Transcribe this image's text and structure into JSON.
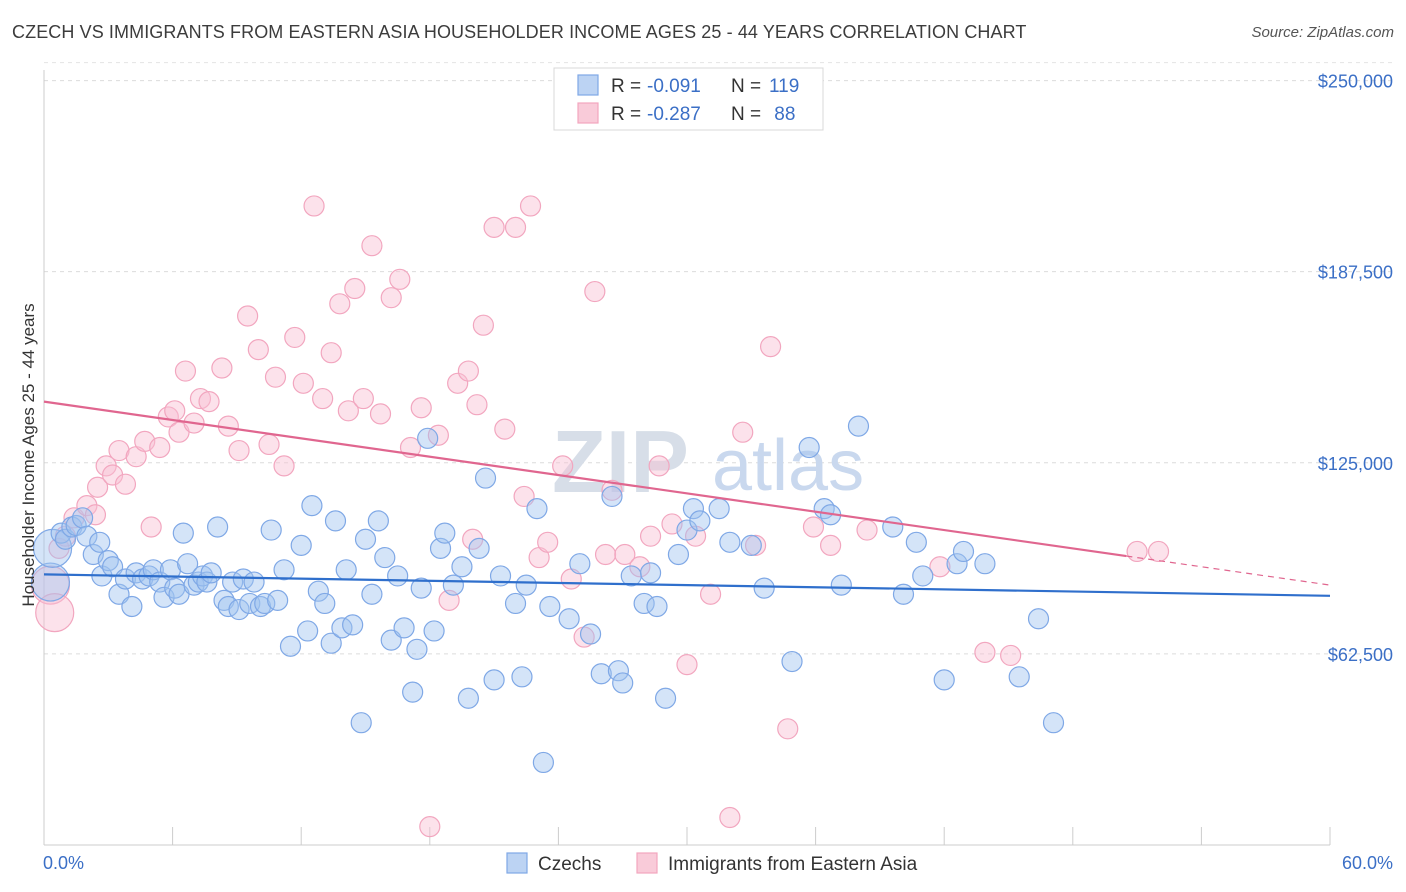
{
  "title": "CZECH VS IMMIGRANTS FROM EASTERN ASIA HOUSEHOLDER INCOME AGES 25 - 44 YEARS CORRELATION CHART",
  "source": "Source: ZipAtlas.com",
  "watermark": {
    "zip": "ZIP",
    "atlas": "atlas"
  },
  "legend_box": {
    "rows": [
      {
        "r_label": "R = ",
        "r_value": "-0.091",
        "n_label": "N = ",
        "n_value": "119"
      },
      {
        "r_label": "R = ",
        "r_value": "-0.287",
        "n_label": "N = ",
        "n_value": " 88"
      }
    ]
  },
  "bottom_legend": [
    "Czechs",
    "Immigrants from Eastern Asia"
  ],
  "chart_data": {
    "type": "scatter",
    "title": "CZECH VS IMMIGRANTS FROM EASTERN ASIA HOUSEHOLDER INCOME AGES 25 - 44 YEARS CORRELATION CHART",
    "xlabel": "",
    "ylabel": "Householder Income Ages 25 - 44 years",
    "xlim": [
      0,
      60
    ],
    "ylim": [
      0,
      260000
    ],
    "x_tick_labels": [
      "0.0%",
      "60.0%"
    ],
    "y_ticks": [
      62500,
      125000,
      187500,
      250000
    ],
    "y_tick_labels": [
      "$62,500",
      "$125,000",
      "$187,500",
      "$250,000"
    ],
    "grid": true,
    "legend_placement": "top-center",
    "colors": {
      "czechs": "#7fa8e6",
      "czechs_line": "#2f6fcc",
      "asia": "#f2a6bf",
      "asia_line": "#e0668f",
      "tick": "#3b6fc6"
    },
    "series": [
      {
        "name": "Czechs",
        "R": -0.091,
        "N": 119,
        "trend": {
          "x": [
            0,
            60
          ],
          "y": [
            88500,
            81500
          ]
        },
        "points": [
          [
            0.3,
            86000,
            1
          ],
          [
            0.4,
            97000,
            1
          ],
          [
            0.8,
            102000,
            0
          ],
          [
            1.0,
            100000,
            0
          ],
          [
            1.3,
            104000,
            0
          ],
          [
            1.5,
            104500,
            0
          ],
          [
            1.8,
            107000,
            0
          ],
          [
            2.0,
            101000,
            0
          ],
          [
            2.3,
            95000,
            0
          ],
          [
            2.6,
            99000,
            0
          ],
          [
            2.7,
            88000,
            0
          ],
          [
            3.0,
            93000,
            0
          ],
          [
            3.2,
            91000,
            0
          ],
          [
            3.5,
            82000,
            0
          ],
          [
            3.8,
            87000,
            0
          ],
          [
            4.1,
            78000,
            0
          ],
          [
            4.3,
            89000,
            0
          ],
          [
            4.6,
            87000,
            0
          ],
          [
            4.9,
            88000,
            0
          ],
          [
            5.1,
            90000,
            0
          ],
          [
            5.4,
            86000,
            0
          ],
          [
            5.6,
            81000,
            0
          ],
          [
            5.9,
            90000,
            0
          ],
          [
            6.1,
            84000,
            0
          ],
          [
            6.3,
            82000,
            0
          ],
          [
            6.5,
            102000,
            0
          ],
          [
            6.7,
            92000,
            0
          ],
          [
            7.0,
            85000,
            0
          ],
          [
            7.2,
            86000,
            0
          ],
          [
            7.4,
            88000,
            0
          ],
          [
            7.6,
            86000,
            0
          ],
          [
            7.8,
            89000,
            0
          ],
          [
            8.1,
            104000,
            0
          ],
          [
            8.4,
            80000,
            0
          ],
          [
            8.6,
            78000,
            0
          ],
          [
            8.8,
            86000,
            0
          ],
          [
            9.1,
            77000,
            0
          ],
          [
            9.3,
            87000,
            0
          ],
          [
            9.6,
            79000,
            0
          ],
          [
            9.8,
            86000,
            0
          ],
          [
            10.1,
            78000,
            0
          ],
          [
            10.3,
            79000,
            0
          ],
          [
            10.6,
            103000,
            0
          ],
          [
            10.9,
            80000,
            0
          ],
          [
            11.2,
            90000,
            0
          ],
          [
            11.5,
            65000,
            0
          ],
          [
            12.0,
            98000,
            0
          ],
          [
            12.3,
            70000,
            0
          ],
          [
            12.5,
            111000,
            0
          ],
          [
            12.8,
            83000,
            0
          ],
          [
            13.1,
            79000,
            0
          ],
          [
            13.4,
            66000,
            0
          ],
          [
            13.6,
            106000,
            0
          ],
          [
            13.9,
            71000,
            0
          ],
          [
            14.1,
            90000,
            0
          ],
          [
            14.4,
            72000,
            0
          ],
          [
            14.8,
            40000,
            0
          ],
          [
            15.0,
            100000,
            0
          ],
          [
            15.3,
            82000,
            0
          ],
          [
            15.6,
            106000,
            0
          ],
          [
            15.9,
            94000,
            0
          ],
          [
            16.2,
            67000,
            0
          ],
          [
            16.5,
            88000,
            0
          ],
          [
            16.8,
            71000,
            0
          ],
          [
            17.2,
            50000,
            0
          ],
          [
            17.4,
            64000,
            0
          ],
          [
            17.6,
            84000,
            0
          ],
          [
            17.9,
            133000,
            0
          ],
          [
            18.2,
            70000,
            0
          ],
          [
            18.5,
            97000,
            0
          ],
          [
            18.7,
            102000,
            0
          ],
          [
            19.1,
            85000,
            0
          ],
          [
            19.5,
            91000,
            0
          ],
          [
            19.8,
            48000,
            0
          ],
          [
            20.3,
            97000,
            0
          ],
          [
            20.6,
            120000,
            0
          ],
          [
            21.0,
            54000,
            0
          ],
          [
            21.3,
            88000,
            0
          ],
          [
            22.0,
            79000,
            0
          ],
          [
            22.3,
            55000,
            0
          ],
          [
            22.5,
            85000,
            0
          ],
          [
            23.0,
            110000,
            0
          ],
          [
            23.3,
            27000,
            0
          ],
          [
            23.6,
            78000,
            0
          ],
          [
            24.5,
            74000,
            0
          ],
          [
            25.0,
            92000,
            0
          ],
          [
            25.5,
            69000,
            0
          ],
          [
            26.0,
            56000,
            0
          ],
          [
            26.5,
            114000,
            0
          ],
          [
            26.8,
            57000,
            0
          ],
          [
            27.0,
            53000,
            0
          ],
          [
            27.4,
            88000,
            0
          ],
          [
            28.0,
            79000,
            0
          ],
          [
            28.3,
            89000,
            0
          ],
          [
            28.6,
            78000,
            0
          ],
          [
            29.0,
            48000,
            0
          ],
          [
            29.6,
            95000,
            0
          ],
          [
            30.0,
            103000,
            0
          ],
          [
            30.3,
            110000,
            0
          ],
          [
            30.6,
            106000,
            0
          ],
          [
            31.5,
            110000,
            0
          ],
          [
            32.0,
            99000,
            0
          ],
          [
            33.0,
            98000,
            0
          ],
          [
            33.6,
            84000,
            0
          ],
          [
            34.9,
            60000,
            0
          ],
          [
            35.7,
            130000,
            0
          ],
          [
            36.4,
            110000,
            0
          ],
          [
            36.7,
            108000,
            0
          ],
          [
            37.2,
            85000,
            0
          ],
          [
            38.0,
            137000,
            0
          ],
          [
            39.6,
            104000,
            0
          ],
          [
            40.1,
            82000,
            0
          ],
          [
            40.7,
            99000,
            0
          ],
          [
            41.0,
            88000,
            0
          ],
          [
            42.0,
            54000,
            0
          ],
          [
            42.6,
            92000,
            0
          ],
          [
            42.9,
            96000,
            0
          ],
          [
            43.9,
            92000,
            0
          ],
          [
            45.5,
            55000,
            0
          ],
          [
            46.4,
            74000,
            0
          ],
          [
            47.1,
            40000,
            0
          ]
        ]
      },
      {
        "name": "Immigrants from Eastern Asia",
        "R": -0.287,
        "N": 88,
        "trend": {
          "x": [
            0,
            50.5
          ],
          "y": [
            145000,
            94500
          ]
        },
        "trend_dashed": {
          "x": [
            50.5,
            60
          ],
          "y": [
            94500,
            85000
          ]
        },
        "points": [
          [
            0.3,
            85000,
            1
          ],
          [
            0.5,
            76000,
            1
          ],
          [
            0.7,
            97000,
            0
          ],
          [
            1.0,
            101000,
            0
          ],
          [
            1.4,
            107000,
            0
          ],
          [
            2.0,
            111000,
            0
          ],
          [
            2.4,
            108000,
            0
          ],
          [
            2.5,
            117000,
            0
          ],
          [
            2.9,
            124000,
            0
          ],
          [
            3.2,
            121000,
            0
          ],
          [
            3.5,
            129000,
            0
          ],
          [
            3.8,
            118000,
            0
          ],
          [
            4.3,
            127000,
            0
          ],
          [
            4.7,
            132000,
            0
          ],
          [
            5.0,
            104000,
            0
          ],
          [
            5.4,
            130000,
            0
          ],
          [
            5.8,
            140000,
            0
          ],
          [
            6.1,
            142000,
            0
          ],
          [
            6.3,
            135000,
            0
          ],
          [
            6.6,
            155000,
            0
          ],
          [
            7.0,
            138000,
            0
          ],
          [
            7.3,
            146000,
            0
          ],
          [
            7.7,
            145000,
            0
          ],
          [
            8.3,
            156000,
            0
          ],
          [
            8.6,
            137000,
            0
          ],
          [
            9.1,
            129000,
            0
          ],
          [
            9.5,
            173000,
            0
          ],
          [
            10.0,
            162000,
            0
          ],
          [
            10.5,
            131000,
            0
          ],
          [
            10.8,
            153000,
            0
          ],
          [
            11.2,
            124000,
            0
          ],
          [
            11.7,
            166000,
            0
          ],
          [
            12.1,
            151000,
            0
          ],
          [
            12.6,
            209000,
            0
          ],
          [
            13.0,
            146000,
            0
          ],
          [
            13.4,
            161000,
            0
          ],
          [
            13.8,
            177000,
            0
          ],
          [
            14.2,
            142000,
            0
          ],
          [
            14.5,
            182000,
            0
          ],
          [
            14.9,
            146000,
            0
          ],
          [
            15.3,
            196000,
            0
          ],
          [
            15.7,
            141000,
            0
          ],
          [
            16.2,
            179000,
            0
          ],
          [
            16.6,
            185000,
            0
          ],
          [
            17.1,
            130000,
            0
          ],
          [
            17.6,
            143000,
            0
          ],
          [
            18.0,
            6000,
            0
          ],
          [
            18.4,
            134000,
            0
          ],
          [
            18.9,
            80000,
            0
          ],
          [
            19.3,
            151000,
            0
          ],
          [
            19.8,
            155000,
            0
          ],
          [
            20.0,
            100000,
            0
          ],
          [
            20.2,
            144000,
            0
          ],
          [
            20.5,
            170000,
            0
          ],
          [
            21.0,
            202000,
            0
          ],
          [
            21.5,
            136000,
            0
          ],
          [
            22.0,
            202000,
            0
          ],
          [
            22.4,
            114000,
            0
          ],
          [
            22.7,
            209000,
            0
          ],
          [
            23.1,
            94000,
            0
          ],
          [
            23.5,
            99000,
            0
          ],
          [
            24.2,
            124000,
            0
          ],
          [
            24.6,
            87000,
            0
          ],
          [
            25.2,
            68000,
            0
          ],
          [
            25.7,
            181000,
            0
          ],
          [
            26.2,
            95000,
            0
          ],
          [
            26.5,
            116000,
            0
          ],
          [
            27.1,
            95000,
            0
          ],
          [
            27.8,
            91000,
            0
          ],
          [
            28.3,
            101000,
            0
          ],
          [
            28.7,
            124000,
            0
          ],
          [
            29.3,
            105000,
            0
          ],
          [
            30.0,
            59000,
            0
          ],
          [
            30.4,
            101000,
            0
          ],
          [
            31.1,
            82000,
            0
          ],
          [
            32.0,
            9000,
            0
          ],
          [
            32.6,
            135000,
            0
          ],
          [
            33.2,
            98000,
            0
          ],
          [
            33.9,
            163000,
            0
          ],
          [
            34.7,
            38000,
            0
          ],
          [
            35.9,
            104000,
            0
          ],
          [
            36.7,
            98000,
            0
          ],
          [
            38.4,
            103000,
            0
          ],
          [
            41.8,
            91000,
            0
          ],
          [
            43.9,
            63000,
            0
          ],
          [
            45.1,
            62000,
            0
          ],
          [
            51.0,
            96000,
            0
          ],
          [
            52.0,
            96000,
            0
          ]
        ]
      }
    ]
  }
}
